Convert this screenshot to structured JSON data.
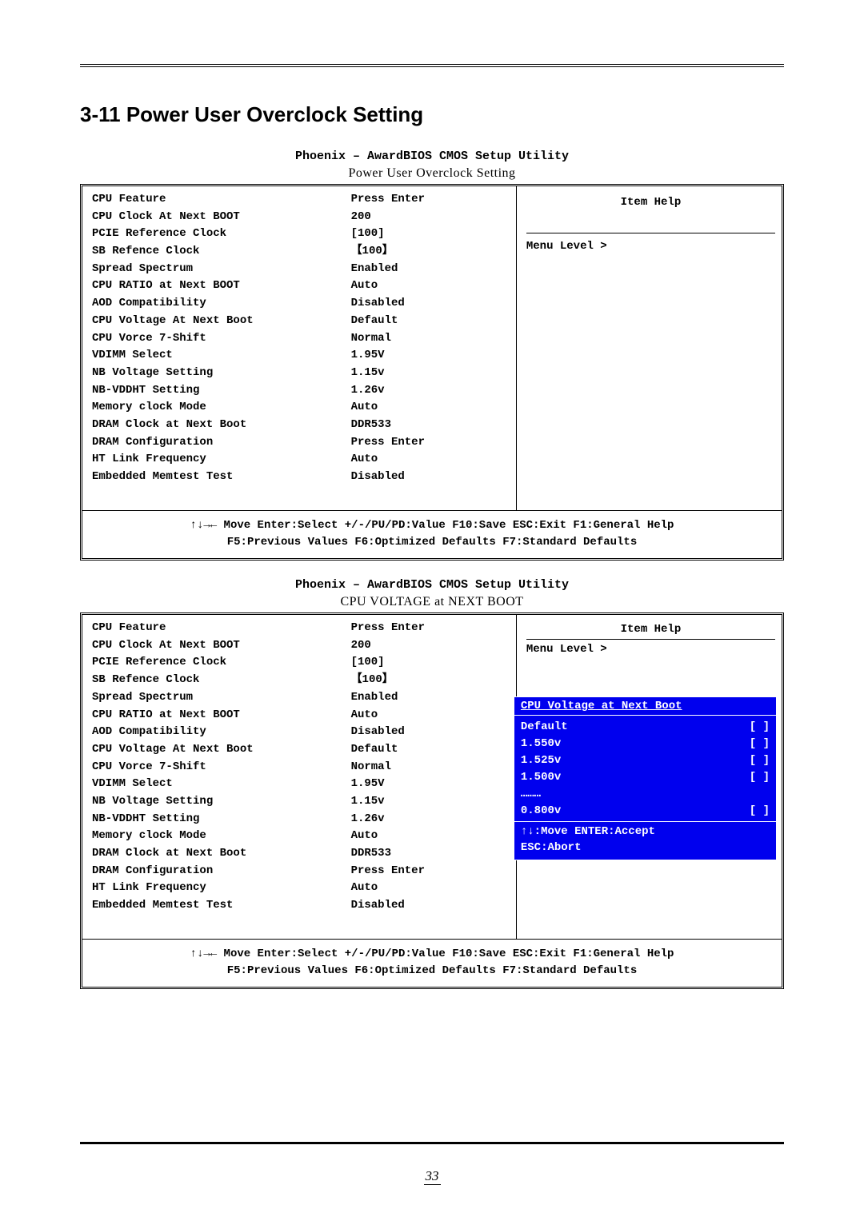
{
  "page": {
    "section_title": "3-11 Power User Overclock Setting",
    "page_number": "33"
  },
  "box1": {
    "utility_title": "Phoenix – AwardBIOS CMOS Setup Utility",
    "subtitle": "Power User Overclock Setting",
    "rows": [
      {
        "label": "CPU Feature",
        "value": "Press Enter"
      },
      {
        "label": "CPU Clock At Next BOOT",
        "value": "200"
      },
      {
        "label": "PCIE Reference Clock",
        "value": "[100]"
      },
      {
        "label": "SB Refence Clock",
        "value": "【100】"
      },
      {
        "label": "Spread Spectrum",
        "value": "Enabled"
      },
      {
        "label": "CPU RATIO at Next BOOT",
        "value": "Auto"
      },
      {
        "label": "AOD Compatibility",
        "value": "Disabled"
      },
      {
        "label": "CPU Voltage At Next Boot",
        "value": " Default"
      },
      {
        "label": "CPU Vorce 7-Shift",
        "value": "Normal"
      },
      {
        "label": "VDIMM Select",
        "value": "1.95V"
      },
      {
        "label": "NB Voltage Setting",
        "value": "1.15v"
      },
      {
        "label": "NB-VDDHT Setting",
        "value": "1.26v"
      },
      {
        "label": "Memory clock Mode",
        "value": "Auto"
      },
      {
        "label": "DRAM Clock at Next Boot",
        "value": "DDR533"
      },
      {
        "label": "DRAM Configuration",
        "value": " Press Enter"
      },
      {
        "label": "HT Link Frequency",
        "value": "Auto"
      },
      {
        "label": "Embedded Memtest Test",
        "value": " Disabled"
      }
    ],
    "item_help": "Item Help",
    "menu_level": "Menu Level >",
    "footer_line1": "↑↓→← Move Enter:Select +/-/PU/PD:Value F10:Save ESC:Exit F1:General Help",
    "footer_line2": "F5:Previous Values   F6:Optimized Defaults  F7:Standard Defaults"
  },
  "box2": {
    "utility_title": "Phoenix – AwardBIOS CMOS Setup Utility",
    "subtitle": "CPU  VOLTAGE  at  NEXT  BOOT",
    "rows": [
      {
        "label": "CPU Feature",
        "value": "Press Enter"
      },
      {
        "label": "CPU Clock At Next BOOT",
        "value": "200"
      },
      {
        "label": "PCIE Reference Clock",
        "value": "[100]"
      },
      {
        "label": "SB Refence Clock",
        "value": "【100】"
      },
      {
        "label": "Spread Spectrum",
        "value": "Enabled"
      },
      {
        "label": "CPU RATIO at Next BOOT",
        "value": "Auto"
      },
      {
        "label": "AOD Compatibility",
        "value": "Disabled"
      },
      {
        "label": "CPU Voltage At Next Boot",
        "value": " Default"
      },
      {
        "label": "CPU Vorce 7-Shift",
        "value": "Normal"
      },
      {
        "label": "VDIMM Select",
        "value": "1.95V"
      },
      {
        "label": "NB Voltage Setting",
        "value": "1.15v"
      },
      {
        "label": "NB-VDDHT Setting",
        "value": "1.26v"
      },
      {
        "label": "Memory clock Mode",
        "value": "Auto"
      },
      {
        "label": "DRAM Clock at Next Boot",
        "value": "DDR533"
      },
      {
        "label": "DRAM Configuration",
        "value": " Press Enter"
      },
      {
        "label": "HT Link Frequency",
        "value": "Auto"
      },
      {
        "label": "Embedded Memtest Test",
        "value": " Disabled"
      }
    ],
    "item_help": "Item Help",
    "menu_level": "Menu Level >",
    "popup": {
      "title": "CPU Voltage at Next Boot",
      "options": [
        {
          "label": "Default",
          "marker": "[ ]"
        },
        {
          "label": "1.550v",
          "marker": "[ ]"
        },
        {
          "label": "1.525v",
          "marker": "[ ]"
        },
        {
          "label": "1.500v",
          "marker": "[ ]"
        },
        {
          "label": "………",
          "marker": ""
        },
        {
          "label": "0.800v",
          "marker": "[ ]"
        }
      ],
      "foot1": "↑↓:Move ENTER:Accept",
      "foot2": "ESC:Abort"
    },
    "footer_line1": "↑↓→← Move Enter:Select +/-/PU/PD:Value F10:Save ESC:Exit F1:General Help",
    "footer_line2": "F5:Previous Values   F6:Optimized Defaults  F7:Standard Defaults"
  },
  "colors": {
    "popup_bg": "#0000ee",
    "popup_fg": "#ffffff",
    "page_bg": "#ffffff",
    "text": "#000000"
  }
}
